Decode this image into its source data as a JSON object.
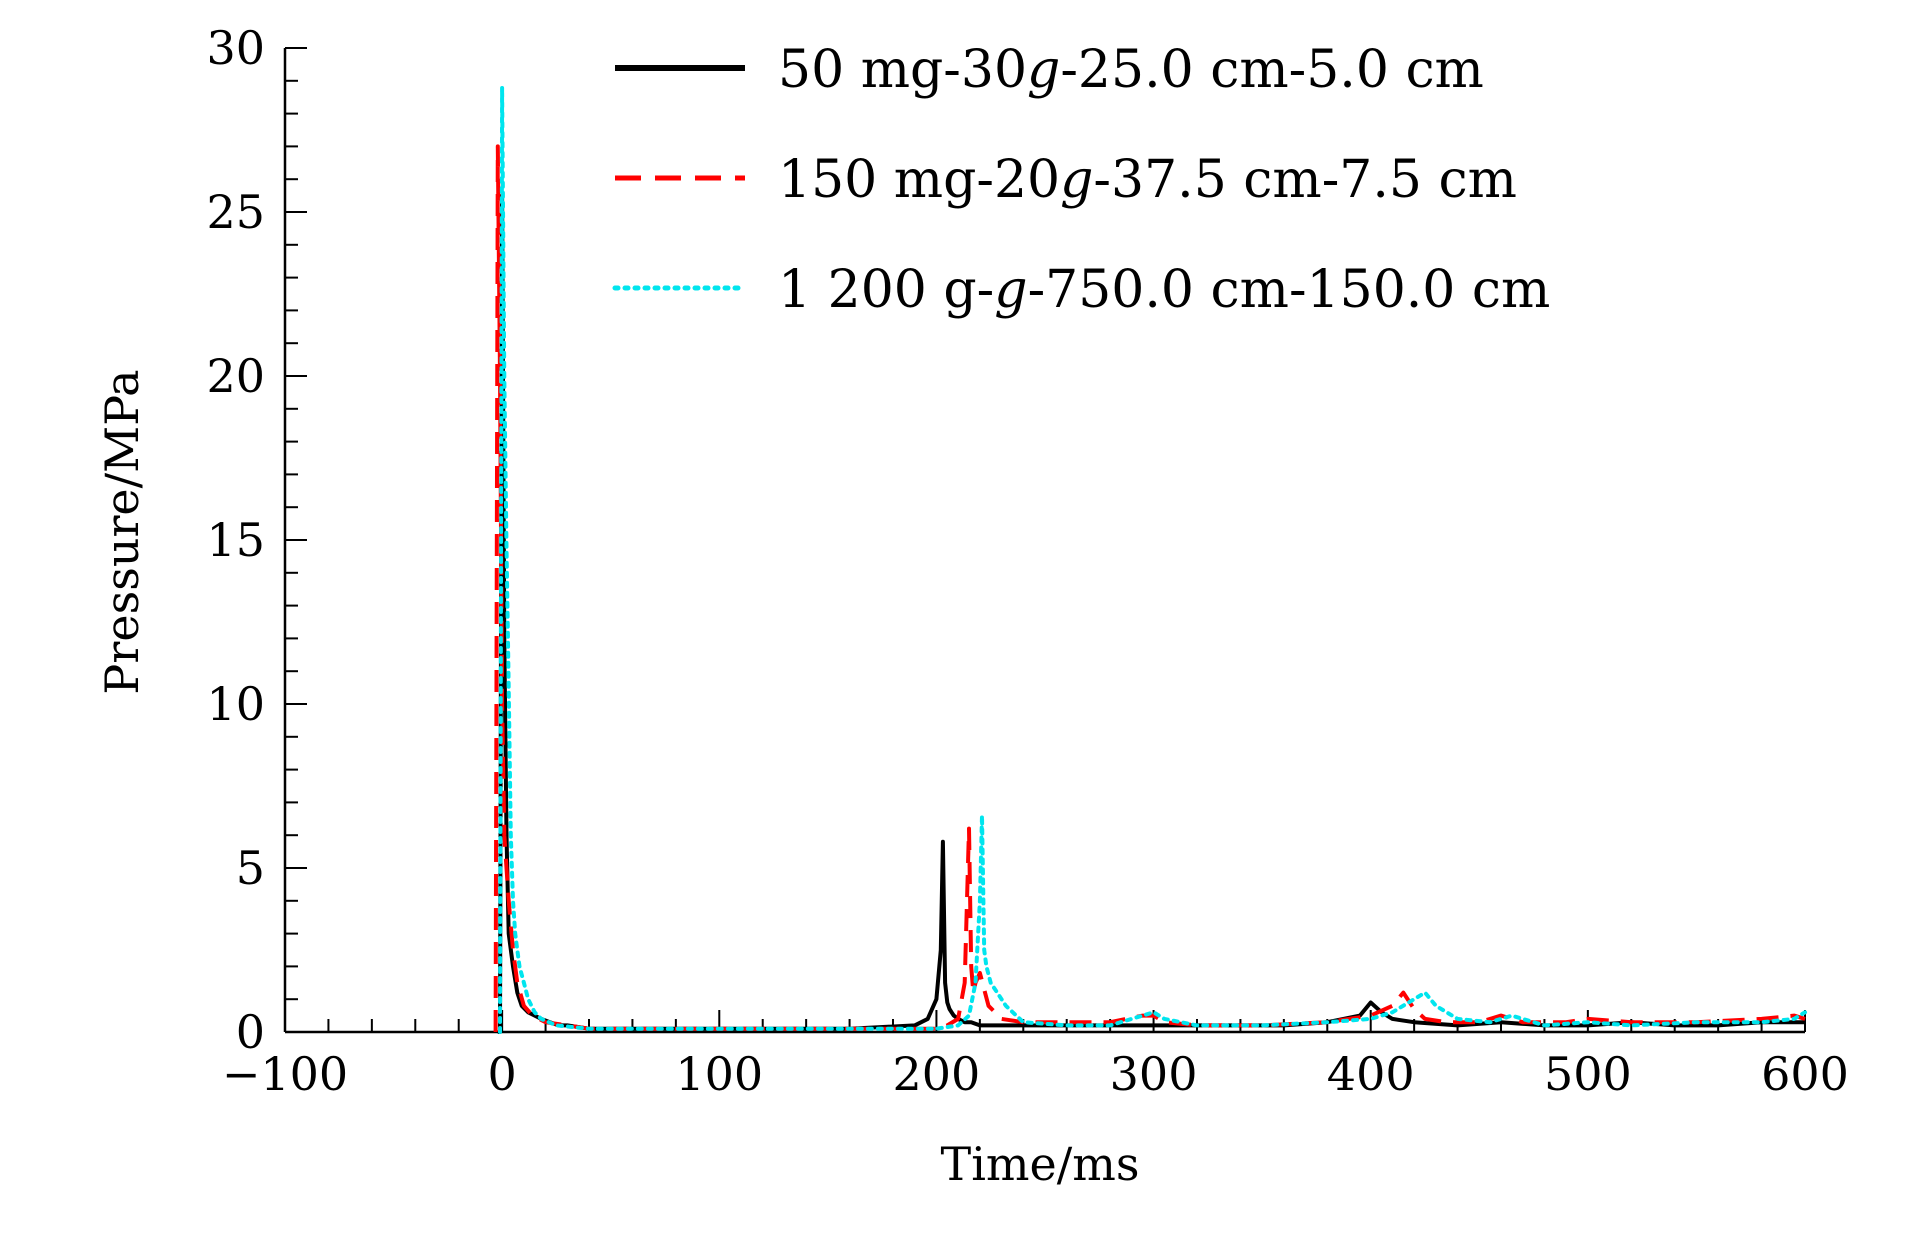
{
  "chart_data": {
    "type": "line",
    "title": "",
    "xlabel": "Time/ms",
    "ylabel": "Pressure/MPa",
    "xlim": [
      -100,
      600
    ],
    "ylim": [
      0,
      30
    ],
    "xticks": [
      -100,
      0,
      100,
      200,
      300,
      400,
      500,
      600
    ],
    "xtick_labels": [
      "−100",
      "0",
      "100",
      "200",
      "300",
      "400",
      "500",
      "600"
    ],
    "yticks": [
      0,
      5,
      10,
      15,
      20,
      25,
      30
    ],
    "ytick_labels": [
      "0",
      "5",
      "10",
      "15",
      "20",
      "25",
      "30"
    ],
    "grid": false,
    "legend_position": "top-right",
    "series": [
      {
        "name": "50 mg-30g-25.0 cm-5.0 cm",
        "name_parts": [
          "50 mg-30",
          "g",
          "-25.0 cm-5.0 cm"
        ],
        "color": "#000000",
        "style": "solid",
        "x": [
          -2,
          -1,
          0,
          1,
          2,
          3,
          5,
          7,
          9,
          12,
          15,
          18,
          22,
          26,
          30,
          40,
          50,
          70,
          100,
          130,
          160,
          190,
          196,
          200,
          202,
          203,
          204,
          205,
          206,
          207,
          208,
          210,
          213,
          216,
          220,
          230,
          250,
          270,
          300,
          330,
          360,
          380,
          395,
          400,
          405,
          410,
          420,
          440,
          460,
          480,
          500,
          520,
          540,
          560,
          580,
          600
        ],
        "y": [
          0,
          0,
          25.5,
          12,
          6,
          3,
          2,
          1.2,
          0.8,
          0.6,
          0.5,
          0.4,
          0.3,
          0.2,
          0.2,
          0.1,
          0.1,
          0.1,
          0.1,
          0.1,
          0.1,
          0.2,
          0.4,
          1.0,
          2.5,
          5.8,
          1.5,
          0.9,
          0.7,
          0.6,
          0.5,
          0.4,
          0.3,
          0.3,
          0.2,
          0.2,
          0.2,
          0.2,
          0.2,
          0.2,
          0.2,
          0.3,
          0.5,
          0.9,
          0.6,
          0.4,
          0.3,
          0.2,
          0.3,
          0.2,
          0.2,
          0.3,
          0.2,
          0.2,
          0.3,
          0.3
        ]
      },
      {
        "name": "150 mg-20g-37.5 cm-7.5 cm",
        "name_parts": [
          "150 mg-20",
          "g",
          "-37.5 cm-7.5 cm"
        ],
        "color": "#ff0000",
        "style": "dashed",
        "x": [
          -3,
          -2,
          -1,
          0,
          1,
          3,
          5,
          7,
          10,
          14,
          20,
          30,
          40,
          60,
          100,
          150,
          200,
          205,
          210,
          213,
          215,
          216,
          217,
          218,
          220,
          224,
          230,
          240,
          260,
          280,
          295,
          300,
          305,
          320,
          350,
          380,
          400,
          410,
          415,
          420,
          425,
          435,
          450,
          460,
          470,
          490,
          500,
          520,
          550,
          580,
          595,
          600
        ],
        "y": [
          0,
          27,
          20,
          10,
          6,
          4,
          2.5,
          1.5,
          0.8,
          0.5,
          0.3,
          0.2,
          0.1,
          0.1,
          0.1,
          0.1,
          0.1,
          0.2,
          0.4,
          1.5,
          6.2,
          2.0,
          1.2,
          1.5,
          1.8,
          0.8,
          0.4,
          0.3,
          0.3,
          0.3,
          0.5,
          0.5,
          0.3,
          0.2,
          0.2,
          0.3,
          0.5,
          0.8,
          1.2,
          0.7,
          0.4,
          0.3,
          0.3,
          0.5,
          0.3,
          0.3,
          0.4,
          0.3,
          0.3,
          0.4,
          0.5,
          0.4
        ]
      },
      {
        "name": "1 200 g-g-750.0 cm-150.0 cm",
        "name_parts": [
          "1 200 g-",
          "g",
          "-750.0 cm-150.0 cm"
        ],
        "color": "#00e5ee",
        "style": "dotted",
        "x": [
          -1,
          0,
          1,
          2,
          3,
          4,
          5,
          6,
          7,
          8,
          10,
          12,
          15,
          18,
          25,
          40,
          60,
          90,
          120,
          160,
          200,
          210,
          215,
          218,
          220,
          221,
          222,
          223,
          225,
          228,
          232,
          240,
          260,
          280,
          295,
          300,
          305,
          320,
          350,
          380,
          400,
          410,
          420,
          425,
          430,
          440,
          455,
          465,
          470,
          480,
          500,
          520,
          550,
          580,
          595,
          600
        ],
        "y": [
          0,
          28.8,
          20,
          14.8,
          10.5,
          6,
          4,
          3,
          2.5,
          2,
          1.5,
          1,
          0.6,
          0.4,
          0.2,
          0.1,
          0.1,
          0.1,
          0.1,
          0.1,
          0.1,
          0.2,
          0.5,
          1.5,
          4,
          6.6,
          2.5,
          2.0,
          1.5,
          1.2,
          0.8,
          0.3,
          0.2,
          0.2,
          0.5,
          0.6,
          0.4,
          0.2,
          0.2,
          0.3,
          0.4,
          0.6,
          1.0,
          1.2,
          0.8,
          0.4,
          0.3,
          0.5,
          0.4,
          0.2,
          0.3,
          0.2,
          0.3,
          0.3,
          0.4,
          0.6
        ]
      }
    ]
  }
}
